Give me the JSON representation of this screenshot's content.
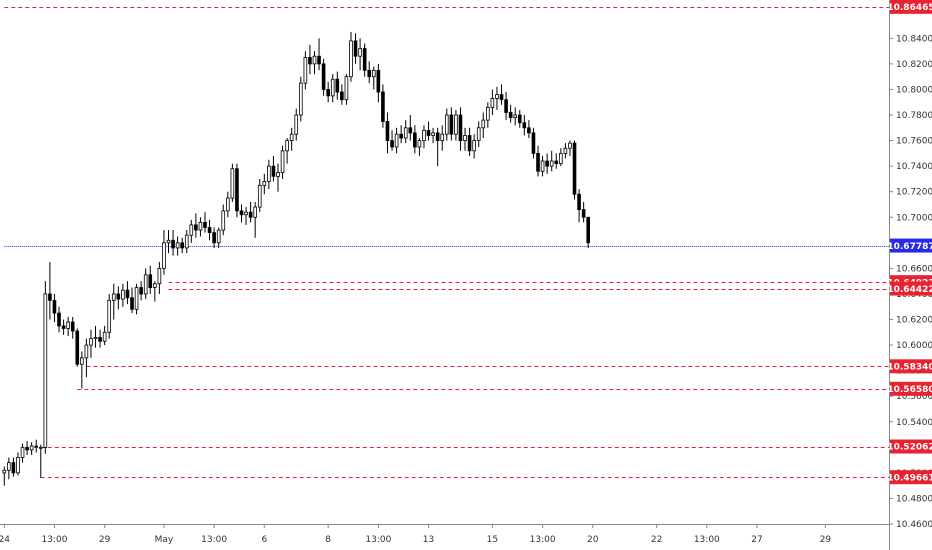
{
  "chart_data": {
    "type": "candlestick",
    "y_axis": {
      "min": 10.46,
      "max": 10.87,
      "ticks": [
        "10.46000",
        "10.48000",
        "10.50000",
        "10.52000",
        "10.54000",
        "10.56000",
        "10.58000",
        "10.60000",
        "10.62000",
        "10.64000",
        "10.66000",
        "10.68000",
        "10.70000",
        "10.72000",
        "10.74000",
        "10.76000",
        "10.78000",
        "10.80000",
        "10.82000",
        "10.84000"
      ],
      "tick_values": [
        10.46,
        10.48,
        10.5,
        10.52,
        10.54,
        10.56,
        10.58,
        10.6,
        10.62,
        10.64,
        10.66,
        10.68,
        10.7,
        10.72,
        10.74,
        10.76,
        10.78,
        10.8,
        10.82,
        10.84
      ]
    },
    "x_axis": {
      "labels": [
        {
          "text": "24",
          "index": 0
        },
        {
          "text": "13:00",
          "index": 11
        },
        {
          "text": "29",
          "index": 22
        },
        {
          "text": "May",
          "index": 35
        },
        {
          "text": "13:00",
          "index": 46
        },
        {
          "text": "6",
          "index": 57
        },
        {
          "text": "8",
          "index": 71
        },
        {
          "text": "13:00",
          "index": 82
        },
        {
          "text": "13",
          "index": 93
        },
        {
          "text": "15",
          "index": 107
        },
        {
          "text": "13:00",
          "index": 118
        },
        {
          "text": "20",
          "index": 129
        },
        {
          "text": "22",
          "index": 143
        },
        {
          "text": "13:00",
          "index": 154
        },
        {
          "text": "27",
          "index": 165
        },
        {
          "text": "29",
          "index": 180
        }
      ],
      "total_slots": 194
    },
    "levels": [
      {
        "value": 10.86465,
        "label": "10.86465",
        "style": "dashed",
        "color": "#e8222f",
        "start_index": 0
      },
      {
        "value": 10.67787,
        "label": "10.67787",
        "style": "dotted",
        "color": "#2929e8",
        "start_index": 0
      },
      {
        "value": 10.64923,
        "label": "10.64923",
        "style": "dashed",
        "color": "#e8222f",
        "start_index": 36
      },
      {
        "value": 10.64422,
        "label": "10.64422",
        "style": "dashed",
        "color": "#e8222f",
        "start_index": 36
      },
      {
        "value": 10.5834,
        "label": "10.58340",
        "style": "dashed",
        "color": "#e8222f",
        "start_index": 18
      },
      {
        "value": 10.5658,
        "label": "10.56580",
        "style": "dashed",
        "color": "#e8222f",
        "start_index": 16
      },
      {
        "value": 10.52062,
        "label": "10.52062",
        "style": "dashed",
        "color": "#e8222f",
        "start_index": 8
      },
      {
        "value": 10.49661,
        "label": "10.49661",
        "style": "dashed",
        "color": "#e8222f",
        "start_index": 8
      }
    ],
    "candles": [
      [
        10.5,
        10.505,
        10.49,
        10.502
      ],
      [
        10.502,
        10.512,
        10.495,
        10.508
      ],
      [
        10.508,
        10.512,
        10.497,
        10.5
      ],
      [
        10.5,
        10.516,
        10.498,
        10.512
      ],
      [
        10.512,
        10.523,
        10.508,
        10.52
      ],
      [
        10.52,
        10.525,
        10.514,
        10.518
      ],
      [
        10.518,
        10.524,
        10.514,
        10.521
      ],
      [
        10.521,
        10.526,
        10.516,
        10.52
      ],
      [
        10.52,
        10.522,
        10.496,
        10.52
      ],
      [
        10.52,
        10.65,
        10.515,
        10.64
      ],
      [
        10.64,
        10.665,
        10.62,
        10.635
      ],
      [
        10.635,
        10.64,
        10.618,
        10.625
      ],
      [
        10.625,
        10.63,
        10.61,
        10.615
      ],
      [
        10.615,
        10.62,
        10.608,
        10.613
      ],
      [
        10.613,
        10.622,
        10.607,
        10.618
      ],
      [
        10.618,
        10.622,
        10.605,
        10.611
      ],
      [
        10.611,
        10.613,
        10.583,
        10.585
      ],
      [
        10.585,
        10.595,
        10.566,
        10.59
      ],
      [
        10.59,
        10.605,
        10.575,
        10.6
      ],
      [
        10.6,
        10.612,
        10.59,
        10.605
      ],
      [
        10.605,
        10.615,
        10.598,
        10.606
      ],
      [
        10.606,
        10.612,
        10.598,
        10.603
      ],
      [
        10.603,
        10.615,
        10.6,
        10.61
      ],
      [
        10.61,
        10.64,
        10.605,
        10.635
      ],
      [
        10.635,
        10.648,
        10.62,
        10.64
      ],
      [
        10.64,
        10.646,
        10.628,
        10.636
      ],
      [
        10.636,
        10.648,
        10.63,
        10.643
      ],
      [
        10.643,
        10.65,
        10.632,
        10.637
      ],
      [
        10.637,
        10.645,
        10.625,
        10.628
      ],
      [
        10.628,
        10.648,
        10.624,
        10.645
      ],
      [
        10.645,
        10.65,
        10.635,
        10.64
      ],
      [
        10.64,
        10.66,
        10.636,
        10.655
      ],
      [
        10.655,
        10.662,
        10.64,
        10.645
      ],
      [
        10.645,
        10.65,
        10.634,
        10.648
      ],
      [
        10.648,
        10.665,
        10.64,
        10.66
      ],
      [
        10.66,
        10.69,
        10.655,
        10.68
      ],
      [
        10.68,
        10.69,
        10.672,
        10.682
      ],
      [
        10.682,
        10.69,
        10.67,
        10.676
      ],
      [
        10.676,
        10.685,
        10.67,
        10.68
      ],
      [
        10.68,
        10.684,
        10.672,
        10.676
      ],
      [
        10.676,
        10.69,
        10.672,
        10.686
      ],
      [
        10.686,
        10.698,
        10.68,
        10.694
      ],
      [
        10.694,
        10.703,
        10.684,
        10.69
      ],
      [
        10.69,
        10.7,
        10.685,
        10.696
      ],
      [
        10.696,
        10.704,
        10.688,
        10.692
      ],
      [
        10.692,
        10.698,
        10.682,
        10.688
      ],
      [
        10.688,
        10.692,
        10.676,
        10.68
      ],
      [
        10.68,
        10.692,
        10.676,
        10.69
      ],
      [
        10.69,
        10.71,
        10.686,
        10.705
      ],
      [
        10.705,
        10.72,
        10.7,
        10.715
      ],
      [
        10.715,
        10.742,
        10.712,
        10.738
      ],
      [
        10.738,
        10.742,
        10.7,
        10.705
      ],
      [
        10.705,
        10.71,
        10.696,
        10.702
      ],
      [
        10.702,
        10.708,
        10.694,
        10.704
      ],
      [
        10.704,
        10.712,
        10.696,
        10.7
      ],
      [
        10.7,
        10.712,
        10.684,
        10.708
      ],
      [
        10.708,
        10.73,
        10.704,
        10.725
      ],
      [
        10.725,
        10.734,
        10.718,
        10.728
      ],
      [
        10.728,
        10.745,
        10.722,
        10.74
      ],
      [
        10.74,
        10.748,
        10.728,
        10.732
      ],
      [
        10.732,
        10.742,
        10.72,
        10.735
      ],
      [
        10.735,
        10.756,
        10.73,
        10.752
      ],
      [
        10.752,
        10.762,
        10.742,
        10.76
      ],
      [
        10.76,
        10.77,
        10.752,
        10.765
      ],
      [
        10.765,
        10.785,
        10.76,
        10.78
      ],
      [
        10.78,
        10.81,
        10.775,
        10.805
      ],
      [
        10.805,
        10.83,
        10.8,
        10.825
      ],
      [
        10.825,
        10.835,
        10.812,
        10.82
      ],
      [
        10.82,
        10.83,
        10.812,
        10.826
      ],
      [
        10.826,
        10.84,
        10.815,
        10.82
      ],
      [
        10.82,
        10.824,
        10.795,
        10.8
      ],
      [
        10.8,
        10.806,
        10.79,
        10.795
      ],
      [
        10.795,
        10.812,
        10.79,
        10.808
      ],
      [
        10.808,
        10.814,
        10.792,
        10.798
      ],
      [
        10.798,
        10.804,
        10.788,
        10.792
      ],
      [
        10.792,
        10.812,
        10.788,
        10.81
      ],
      [
        10.81,
        10.845,
        10.806,
        10.838
      ],
      [
        10.838,
        10.844,
        10.82,
        10.826
      ],
      [
        10.826,
        10.84,
        10.815,
        10.832
      ],
      [
        10.832,
        10.836,
        10.81,
        10.815
      ],
      [
        10.815,
        10.822,
        10.805,
        10.81
      ],
      [
        10.81,
        10.818,
        10.8,
        10.815
      ],
      [
        10.815,
        10.82,
        10.79,
        10.798
      ],
      [
        10.798,
        10.804,
        10.77,
        10.775
      ],
      [
        10.775,
        10.782,
        10.75,
        10.76
      ],
      [
        10.76,
        10.768,
        10.752,
        10.755
      ],
      [
        10.755,
        10.77,
        10.75,
        10.765
      ],
      [
        10.765,
        10.772,
        10.758,
        10.762
      ],
      [
        10.762,
        10.776,
        10.758,
        10.77
      ],
      [
        10.77,
        10.78,
        10.76,
        10.766
      ],
      [
        10.766,
        10.772,
        10.75,
        10.755
      ],
      [
        10.755,
        10.762,
        10.748,
        10.76
      ],
      [
        10.76,
        10.772,
        10.754,
        10.768
      ],
      [
        10.768,
        10.775,
        10.76,
        10.764
      ],
      [
        10.764,
        10.77,
        10.758,
        10.766
      ],
      [
        10.766,
        10.77,
        10.74,
        10.76
      ],
      [
        10.76,
        10.772,
        10.752,
        10.765
      ],
      [
        10.765,
        10.785,
        10.76,
        10.78
      ],
      [
        10.78,
        10.786,
        10.76,
        10.765
      ],
      [
        10.765,
        10.784,
        10.76,
        10.78
      ],
      [
        10.78,
        10.786,
        10.752,
        10.76
      ],
      [
        10.76,
        10.77,
        10.752,
        10.764
      ],
      [
        10.764,
        10.77,
        10.748,
        10.752
      ],
      [
        10.752,
        10.765,
        10.746,
        10.76
      ],
      [
        10.76,
        10.775,
        10.755,
        10.77
      ],
      [
        10.77,
        10.782,
        10.762,
        10.776
      ],
      [
        10.776,
        10.79,
        10.77,
        10.786
      ],
      [
        10.786,
        10.8,
        10.78,
        10.793
      ],
      [
        10.793,
        10.802,
        10.784,
        10.796
      ],
      [
        10.796,
        10.804,
        10.788,
        10.792
      ],
      [
        10.792,
        10.798,
        10.776,
        10.782
      ],
      [
        10.782,
        10.788,
        10.774,
        10.778
      ],
      [
        10.778,
        10.786,
        10.772,
        10.78
      ],
      [
        10.78,
        10.784,
        10.77,
        10.774
      ],
      [
        10.774,
        10.78,
        10.764,
        10.77
      ],
      [
        10.77,
        10.776,
        10.762,
        10.766
      ],
      [
        10.766,
        10.77,
        10.746,
        10.75
      ],
      [
        10.75,
        10.756,
        10.732,
        10.736
      ],
      [
        10.736,
        10.748,
        10.732,
        10.744
      ],
      [
        10.744,
        10.75,
        10.734,
        10.74
      ],
      [
        10.74,
        10.752,
        10.736,
        10.744
      ],
      [
        10.744,
        10.75,
        10.738,
        10.742
      ],
      [
        10.742,
        10.754,
        10.74,
        10.75
      ],
      [
        10.75,
        10.758,
        10.746,
        10.754
      ],
      [
        10.754,
        10.76,
        10.748,
        10.758
      ],
      [
        10.758,
        10.76,
        10.714,
        10.718
      ],
      [
        10.718,
        10.722,
        10.696,
        10.706
      ],
      [
        10.706,
        10.712,
        10.696,
        10.7
      ],
      [
        10.7,
        10.7,
        10.676,
        10.68
      ]
    ]
  }
}
